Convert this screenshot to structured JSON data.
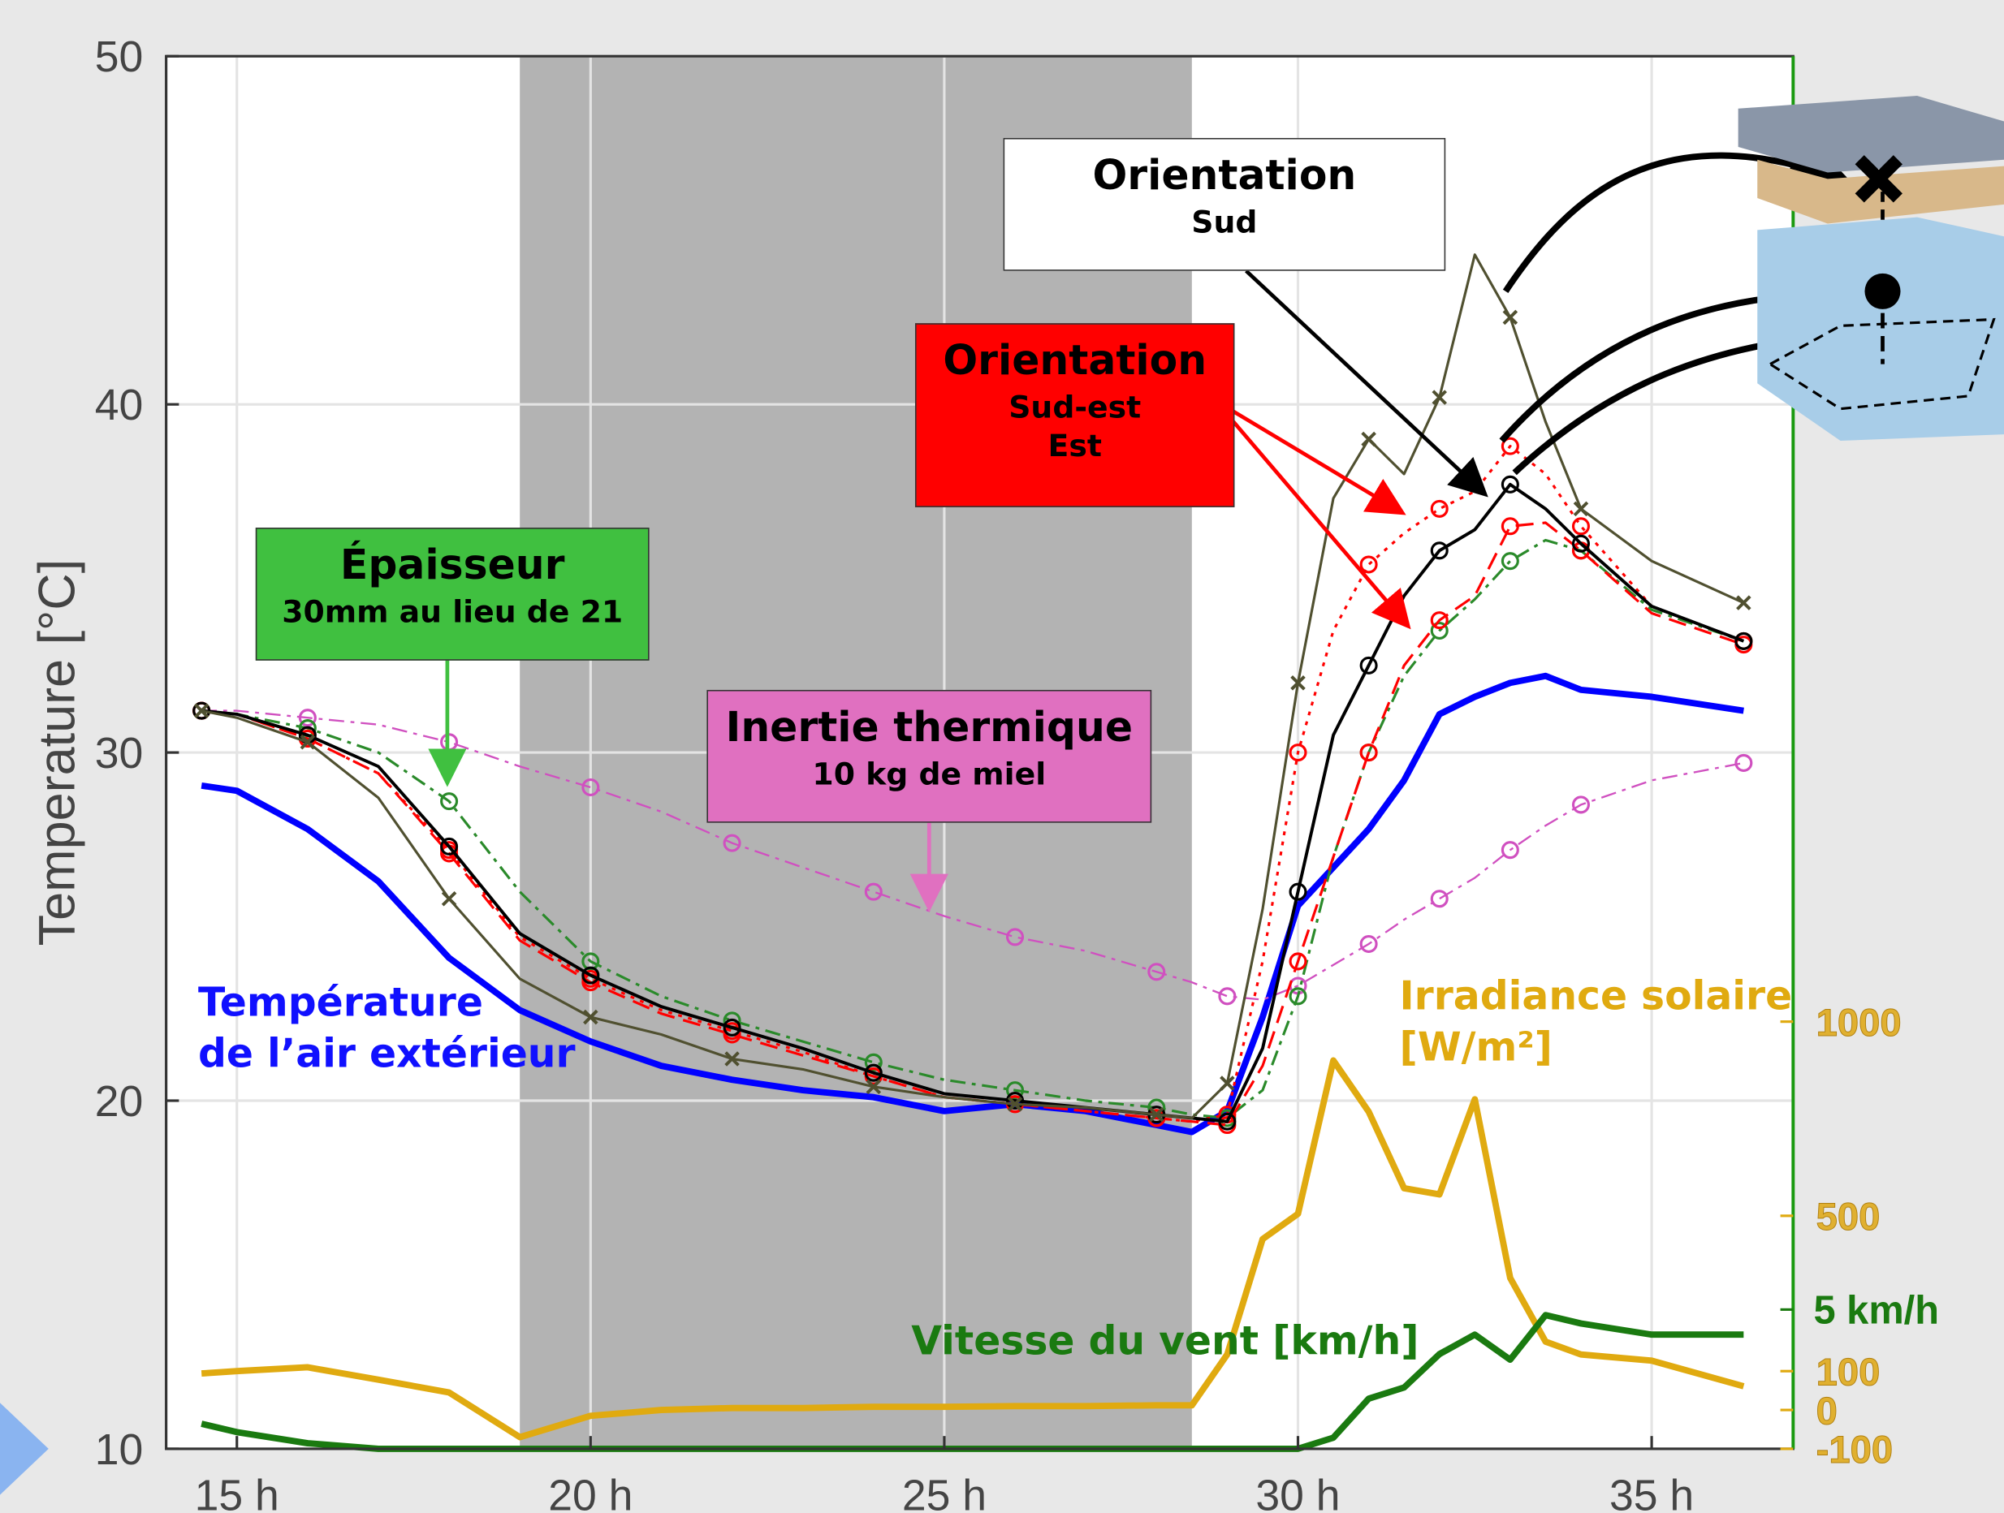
{
  "chart_data": {
    "type": "line",
    "ylabel": "Temperature [°C]",
    "xlim": [
      14,
      37
    ],
    "ylim": [
      10,
      50
    ],
    "y2lim": [
      -100,
      3486
    ],
    "y3lim": [
      0,
      50
    ],
    "xticks": [
      {
        "value": 15,
        "label": "15 h"
      },
      {
        "value": 20,
        "label": "20 h"
      },
      {
        "value": 25,
        "label": "25 h"
      },
      {
        "value": 30,
        "label": "30 h"
      },
      {
        "value": 35,
        "label": "35 h"
      }
    ],
    "yticks": [
      10,
      20,
      30,
      40,
      50
    ],
    "y2ticks": [
      -100,
      0,
      100,
      500,
      1000
    ],
    "y3ticks": [
      {
        "value": 5,
        "label": "5 km/h"
      }
    ],
    "grid": true,
    "night": [
      19,
      28.5
    ],
    "x": [
      14.5,
      15,
      16,
      17,
      18,
      19,
      20,
      21,
      22,
      23,
      24,
      25,
      26,
      27,
      28,
      28.5,
      29,
      29.5,
      30,
      30.5,
      31,
      31.5,
      32,
      32.5,
      33,
      33.5,
      34,
      35,
      36.3
    ],
    "series": [
      {
        "color": "#0000ff",
        "style": "solid",
        "width": 5,
        "marker": "none",
        "values": [
          29.05,
          28.9,
          27.8,
          26.3,
          24.1,
          22.6,
          21.7,
          21.0,
          20.6,
          20.3,
          20.1,
          19.7,
          19.9,
          19.7,
          19.3,
          19.1,
          19.7,
          22.4,
          25.6,
          26.7,
          27.8,
          29.2,
          31.1,
          31.6,
          32.0,
          32.2,
          31.8,
          31.6,
          31.2
        ]
      },
      {
        "color": "#d050c0",
        "style": "dashdot",
        "width": 1.5,
        "marker": "o",
        "values": [
          31.2,
          31.2,
          31.0,
          30.8,
          30.3,
          29.6,
          29.0,
          28.3,
          27.4,
          26.7,
          26.0,
          25.3,
          24.7,
          24.3,
          23.7,
          23.4,
          23.0,
          22.9,
          23.3,
          23.9,
          24.5,
          25.2,
          25.8,
          26.4,
          27.2,
          27.9,
          28.5,
          29.2,
          29.7
        ]
      },
      {
        "color": "#2a8a2a",
        "style": "dashdot",
        "width": 2,
        "marker": "o",
        "values": [
          31.2,
          31.1,
          30.7,
          30.0,
          28.6,
          26.0,
          24.0,
          23.0,
          22.3,
          21.7,
          21.1,
          20.6,
          20.3,
          20.0,
          19.8,
          19.6,
          19.5,
          20.3,
          23.0,
          27.0,
          30.0,
          32.2,
          33.5,
          34.4,
          35.5,
          36.1,
          35.8,
          34.1,
          33.2
        ]
      },
      {
        "color": "#ff0000",
        "style": "dashed",
        "width": 2,
        "marker": "o",
        "values": [
          31.2,
          31.1,
          30.4,
          29.4,
          27.1,
          24.6,
          23.4,
          22.5,
          21.9,
          21.3,
          20.7,
          20.1,
          19.9,
          19.7,
          19.5,
          19.4,
          19.3,
          21.0,
          24.0,
          27.0,
          30.0,
          32.5,
          33.8,
          34.5,
          36.5,
          36.6,
          35.8,
          34.0,
          33.1
        ]
      },
      {
        "color": "#ff0000",
        "style": "dotted",
        "width": 2,
        "marker": "o",
        "values": [
          31.2,
          31.1,
          30.4,
          29.4,
          27.2,
          24.7,
          23.5,
          22.6,
          22.0,
          21.4,
          20.7,
          20.1,
          19.9,
          19.7,
          19.5,
          19.4,
          19.6,
          24.0,
          30.0,
          33.5,
          35.4,
          36.3,
          37.0,
          37.5,
          38.8,
          38.0,
          36.5,
          34.2,
          33.2
        ]
      },
      {
        "color": "#000000",
        "style": "solid",
        "width": 2.5,
        "marker": "o",
        "values": [
          31.2,
          31.1,
          30.5,
          29.6,
          27.3,
          24.8,
          23.6,
          22.7,
          22.1,
          21.5,
          20.8,
          20.2,
          20.0,
          19.8,
          19.6,
          19.5,
          19.4,
          21.5,
          26.0,
          30.5,
          32.5,
          34.5,
          35.8,
          36.4,
          37.7,
          37.0,
          36.0,
          34.2,
          33.2
        ]
      },
      {
        "color": "#505030",
        "style": "solid",
        "width": 2,
        "marker": "x",
        "values": [
          31.2,
          31.0,
          30.3,
          28.7,
          25.8,
          23.5,
          22.4,
          21.9,
          21.2,
          20.9,
          20.4,
          20.1,
          19.9,
          19.8,
          19.6,
          19.5,
          20.5,
          25.5,
          32.0,
          37.3,
          39.0,
          38.0,
          40.2,
          44.3,
          42.5,
          39.5,
          37.0,
          35.5,
          34.3
        ]
      },
      {
        "color": "#e0aa10",
        "style": "solid",
        "width": 5,
        "marker": "none",
        "axis": "y2",
        "values": [
          94,
          100,
          110,
          78,
          45,
          -70,
          -15,
          0,
          5,
          5,
          8,
          8,
          10,
          10,
          12,
          12,
          143,
          440,
          505,
          900,
          768,
          571,
          555,
          800,
          340,
          176,
          143,
          127,
          61
        ]
      },
      {
        "color": "#1a7a10",
        "style": "solid",
        "width": 5,
        "marker": "none",
        "axis": "y3",
        "values": [
          0.9,
          0.6,
          0.2,
          0,
          0,
          0,
          0,
          0,
          0,
          0,
          0,
          0,
          0,
          0,
          0,
          0,
          0,
          0,
          0,
          0.4,
          1.8,
          2.2,
          3.4,
          4.1,
          3.2,
          4.8,
          4.5,
          4.1,
          4.1
        ]
      }
    ],
    "annotations": [
      {
        "title": "Orientation",
        "lines": [
          "Sud"
        ]
      },
      {
        "title": "Orientation",
        "lines": [
          "Sud-est",
          "Est"
        ]
      },
      {
        "title": "Épaisseur",
        "lines": [
          "30mm au lieu de 21"
        ]
      },
      {
        "title": "Inertie thermique",
        "lines": [
          "10 kg de miel"
        ]
      },
      {
        "title": "Température",
        "lines": [
          "de l’air extérieur"
        ]
      },
      {
        "title": "Irradiance solaire",
        "lines": [
          "[W/m²]"
        ]
      },
      {
        "title": "Vitesse du vent [km/h]",
        "lines": []
      }
    ]
  }
}
